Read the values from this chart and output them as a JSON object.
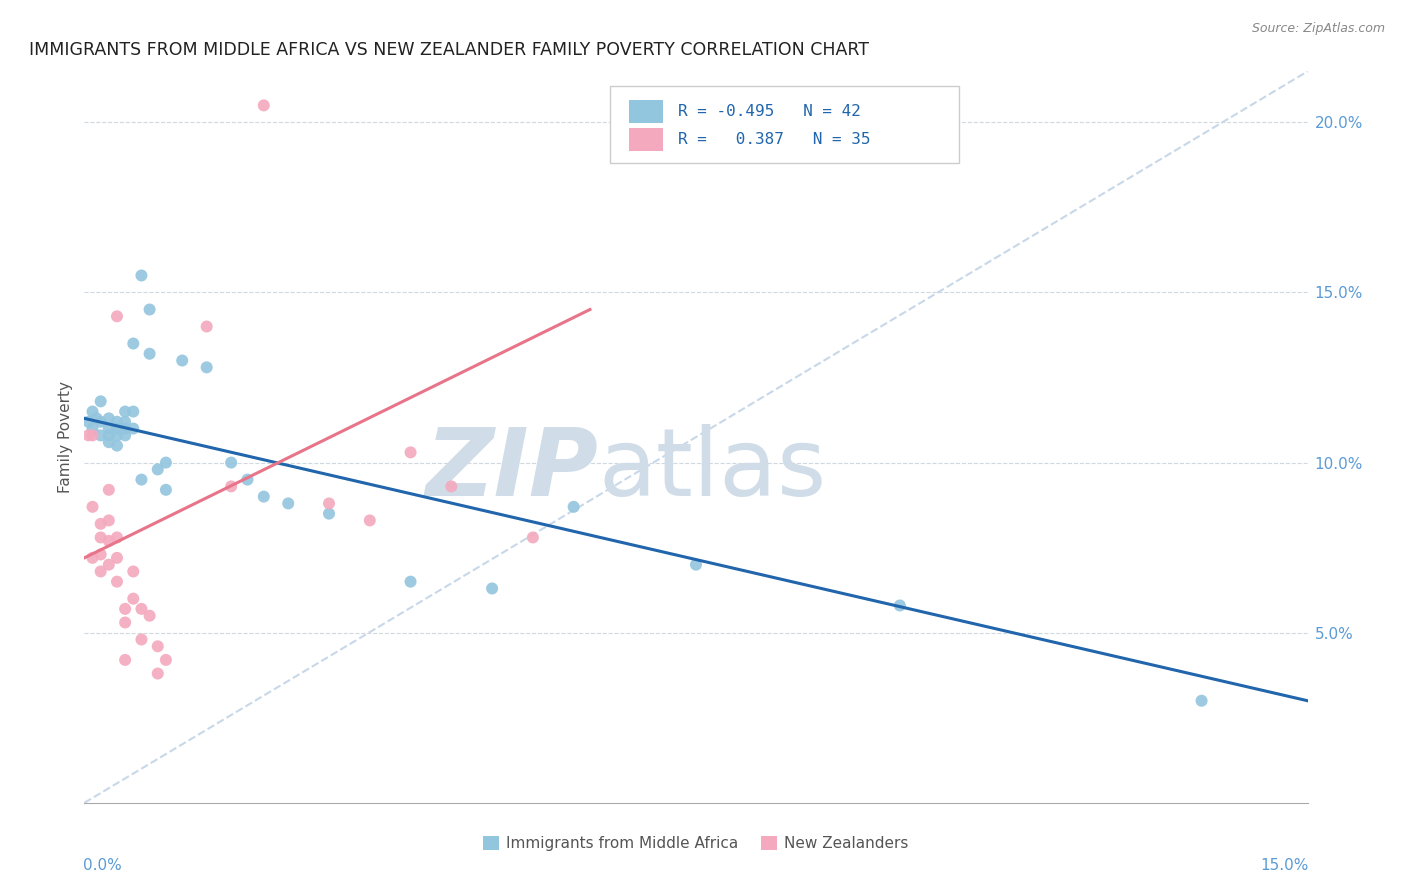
{
  "title": "IMMIGRANTS FROM MIDDLE AFRICA VS NEW ZEALANDER FAMILY POVERTY CORRELATION CHART",
  "source": "Source: ZipAtlas.com",
  "ylabel": "Family Poverty",
  "xmin": 0.0,
  "xmax": 0.15,
  "ymin": 0.0,
  "ymax": 0.215,
  "yticks": [
    0.05,
    0.1,
    0.15,
    0.2
  ],
  "ytick_labels": [
    "5.0%",
    "10.0%",
    "15.0%",
    "20.0%"
  ],
  "blue_color": "#92c5de",
  "pink_color": "#f4a9be",
  "blue_line_color": "#2166ac",
  "pink_line_color": "#e8748a",
  "dashed_line_color": "#c8d8e8",
  "watermark_zip": "ZIP",
  "watermark_atlas": "atlas",
  "blue_scatter_x": [
    0.0005,
    0.001,
    0.001,
    0.0015,
    0.002,
    0.002,
    0.002,
    0.003,
    0.003,
    0.003,
    0.003,
    0.004,
    0.004,
    0.004,
    0.004,
    0.005,
    0.005,
    0.005,
    0.005,
    0.006,
    0.006,
    0.006,
    0.007,
    0.007,
    0.008,
    0.008,
    0.009,
    0.01,
    0.01,
    0.012,
    0.015,
    0.018,
    0.02,
    0.022,
    0.025,
    0.03,
    0.04,
    0.05,
    0.06,
    0.075,
    0.1,
    0.137
  ],
  "blue_scatter_y": [
    0.112,
    0.115,
    0.11,
    0.113,
    0.118,
    0.112,
    0.108,
    0.113,
    0.11,
    0.108,
    0.106,
    0.112,
    0.11,
    0.108,
    0.105,
    0.115,
    0.112,
    0.11,
    0.108,
    0.135,
    0.115,
    0.11,
    0.155,
    0.095,
    0.145,
    0.132,
    0.098,
    0.1,
    0.092,
    0.13,
    0.128,
    0.1,
    0.095,
    0.09,
    0.088,
    0.085,
    0.065,
    0.063,
    0.087,
    0.07,
    0.058,
    0.03
  ],
  "pink_scatter_x": [
    0.0005,
    0.001,
    0.001,
    0.001,
    0.002,
    0.002,
    0.002,
    0.002,
    0.003,
    0.003,
    0.003,
    0.003,
    0.004,
    0.004,
    0.004,
    0.005,
    0.005,
    0.005,
    0.006,
    0.006,
    0.007,
    0.007,
    0.008,
    0.009,
    0.009,
    0.01,
    0.015,
    0.018,
    0.022,
    0.03,
    0.035,
    0.04,
    0.045,
    0.055,
    0.004
  ],
  "pink_scatter_y": [
    0.108,
    0.108,
    0.087,
    0.072,
    0.082,
    0.078,
    0.073,
    0.068,
    0.092,
    0.083,
    0.077,
    0.07,
    0.078,
    0.072,
    0.065,
    0.057,
    0.053,
    0.042,
    0.068,
    0.06,
    0.057,
    0.048,
    0.055,
    0.046,
    0.038,
    0.042,
    0.14,
    0.093,
    0.205,
    0.088,
    0.083,
    0.103,
    0.093,
    0.078,
    0.143
  ]
}
